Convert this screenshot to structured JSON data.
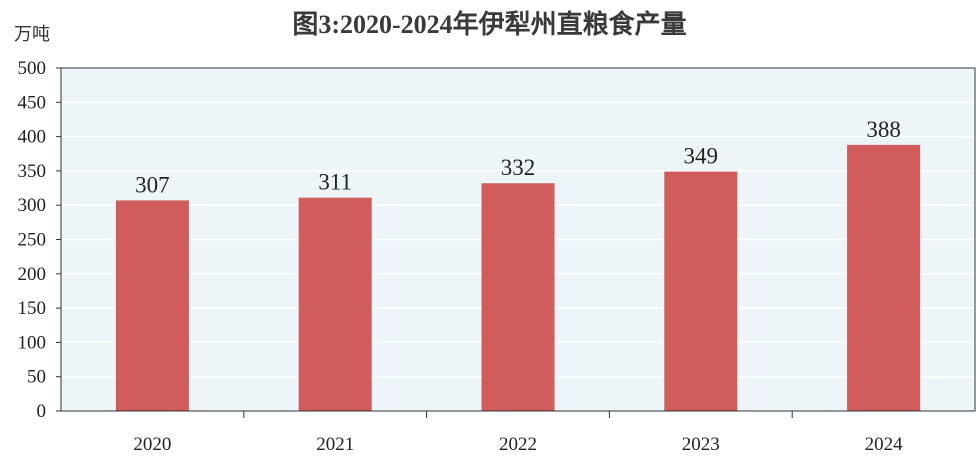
{
  "chart_data": {
    "type": "bar",
    "title": "图3:2020-2024年伊犁州直粮食产量",
    "ylabel": "万吨",
    "xlabel": "",
    "categories": [
      "2020",
      "2021",
      "2022",
      "2023",
      "2024"
    ],
    "series": [
      {
        "values": [
          307,
          311,
          332,
          349,
          388
        ]
      }
    ],
    "data_labels": [
      "307",
      "311",
      "332",
      "349",
      "388"
    ],
    "ylim": [
      0,
      500
    ],
    "yticks": [
      "0",
      "50",
      "100",
      "150",
      "200",
      "250",
      "300",
      "350",
      "400",
      "450",
      "500"
    ],
    "grid": true,
    "legend": "none",
    "colors": {
      "bar": "#d05c5c",
      "plot_background": "#edf5f8",
      "gridline": "#ffffff",
      "axis": "#333333"
    }
  }
}
